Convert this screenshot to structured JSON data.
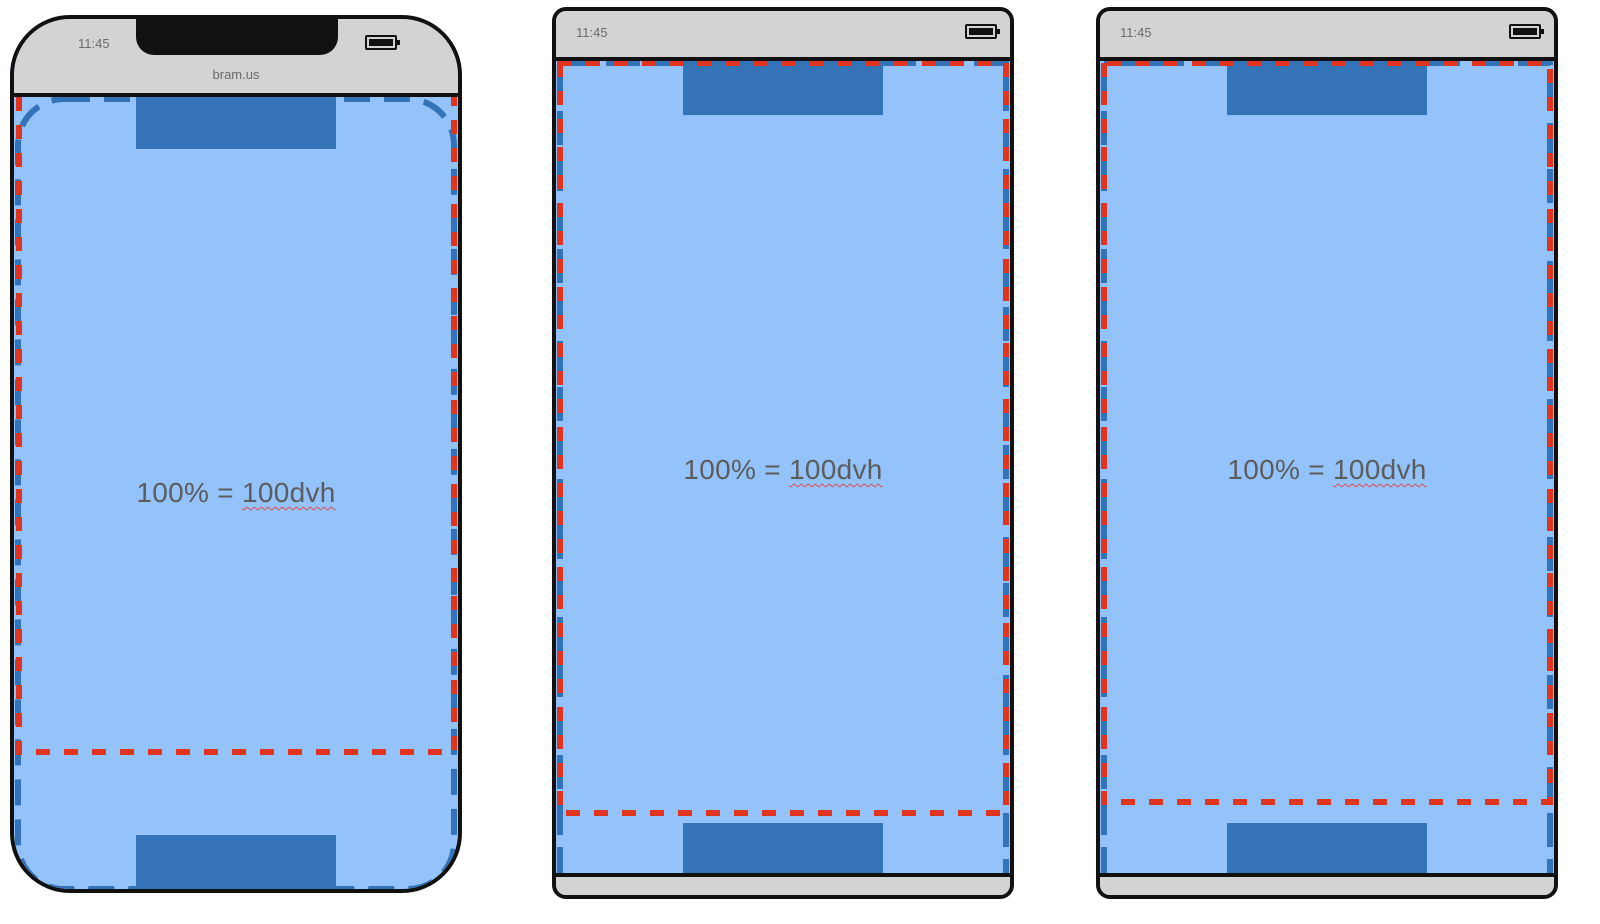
{
  "colors": {
    "viewport_fill": "#93c3fa",
    "block": "#3573b8",
    "blue_dash": "#3573b8",
    "red_dash": "#e0341f",
    "frame": "#111111",
    "bar": "#d3d3d3"
  },
  "devices": [
    {
      "time": "11:45",
      "url": "bram.us",
      "label_main": "100% = ",
      "label_unit": "100dvh"
    },
    {
      "time": "11:45",
      "label_main": "100% = ",
      "label_unit": "100dvh"
    },
    {
      "time": "11:45",
      "label_main": "100% = ",
      "label_unit": "100dvh"
    }
  ]
}
